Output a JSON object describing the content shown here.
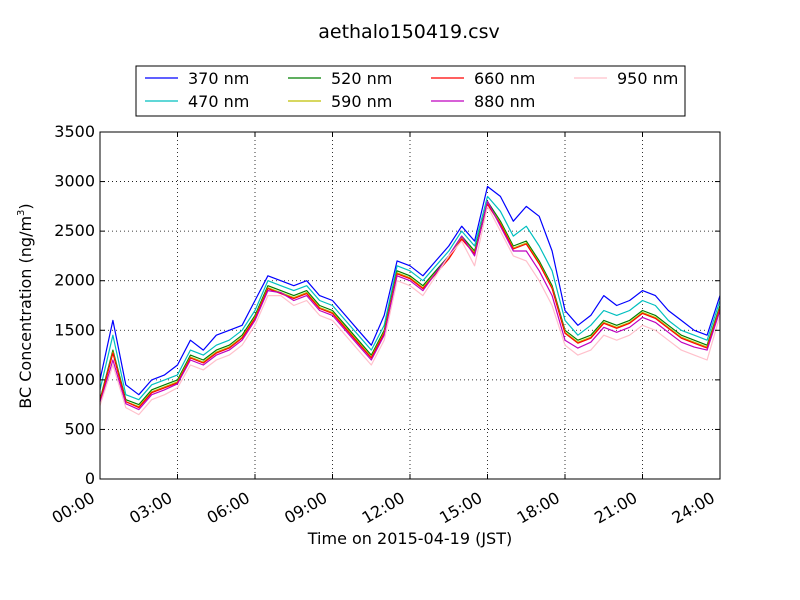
{
  "chart_data": {
    "type": "line",
    "title": "aethalo150419.csv",
    "xlabel": "Time on 2015-04-19 (JST)",
    "ylabel_main": "BC Concentration (ng/m",
    "ylabel_sup": "3",
    "ylabel_close": ")",
    "ylim": [
      0,
      3500
    ],
    "xlim": [
      0,
      24
    ],
    "grid": true,
    "legend_position": "top",
    "x_tick_labels": [
      {
        "x": 0,
        "label": "00:00"
      },
      {
        "x": 3,
        "label": "03:00"
      },
      {
        "x": 6,
        "label": "06:00"
      },
      {
        "x": 9,
        "label": "09:00"
      },
      {
        "x": 12,
        "label": "12:00"
      },
      {
        "x": 15,
        "label": "15:00"
      },
      {
        "x": 18,
        "label": "18:00"
      },
      {
        "x": 21,
        "label": "21:00"
      },
      {
        "x": 24,
        "label": "24:00"
      }
    ],
    "y_tick_labels": [
      {
        "y": 0,
        "label": "0"
      },
      {
        "y": 500,
        "label": "500"
      },
      {
        "y": 1000,
        "label": "1000"
      },
      {
        "y": 1500,
        "label": "1500"
      },
      {
        "y": 2000,
        "label": "2000"
      },
      {
        "y": 2500,
        "label": "2500"
      },
      {
        "y": 3000,
        "label": "3000"
      },
      {
        "y": 3500,
        "label": "3500"
      }
    ],
    "x": [
      0,
      0.5,
      1,
      1.5,
      2,
      2.5,
      3,
      3.5,
      4,
      4.5,
      5,
      5.5,
      6,
      6.5,
      7,
      7.5,
      8,
      8.5,
      9,
      9.5,
      10,
      10.5,
      11,
      11.5,
      12,
      12.5,
      13,
      13.5,
      14,
      14.5,
      15,
      15.5,
      16,
      16.5,
      17,
      17.5,
      18,
      18.5,
      19,
      19.5,
      20,
      20.5,
      21,
      21.5,
      22,
      22.5,
      23,
      23.5,
      24
    ],
    "series": [
      {
        "name": "370 nm",
        "color": "#0000ff",
        "values": [
          1000,
          1600,
          950,
          850,
          1000,
          1050,
          1150,
          1400,
          1300,
          1450,
          1500,
          1550,
          1800,
          2050,
          2000,
          1950,
          2000,
          1850,
          1800,
          1650,
          1500,
          1350,
          1650,
          2200,
          2150,
          2050,
          2200,
          2350,
          2550,
          2400,
          2950,
          2850,
          2600,
          2750,
          2650,
          2300,
          1700,
          1550,
          1650,
          1850,
          1750,
          1800,
          1900,
          1850,
          1700,
          1600,
          1500,
          1450,
          1850
        ]
      },
      {
        "name": "470 nm",
        "color": "#00bfbf",
        "values": [
          900,
          1450,
          850,
          800,
          950,
          1000,
          1050,
          1300,
          1250,
          1350,
          1400,
          1500,
          1700,
          2000,
          1950,
          1900,
          1950,
          1800,
          1750,
          1600,
          1450,
          1300,
          1550,
          2150,
          2100,
          2000,
          2150,
          2300,
          2500,
          2350,
          2850,
          2700,
          2450,
          2550,
          2350,
          2100,
          1600,
          1450,
          1550,
          1700,
          1650,
          1700,
          1800,
          1750,
          1600,
          1500,
          1450,
          1400,
          1800
        ]
      },
      {
        "name": "520 nm",
        "color": "#007f00",
        "values": [
          800,
          1300,
          800,
          750,
          900,
          950,
          1000,
          1250,
          1200,
          1300,
          1350,
          1450,
          1650,
          1950,
          1900,
          1850,
          1900,
          1750,
          1700,
          1550,
          1400,
          1250,
          1500,
          2100,
          2050,
          1950,
          2100,
          2250,
          2450,
          2300,
          2800,
          2600,
          2350,
          2400,
          2200,
          1950,
          1500,
          1400,
          1450,
          1600,
          1550,
          1600,
          1700,
          1650,
          1550,
          1450,
          1400,
          1350,
          1750
        ]
      },
      {
        "name": "590 nm",
        "color": "#bfbf00",
        "values": [
          780,
          1280,
          780,
          730,
          880,
          930,
          980,
          1230,
          1180,
          1280,
          1330,
          1430,
          1630,
          1930,
          1880,
          1830,
          1880,
          1730,
          1680,
          1530,
          1380,
          1230,
          1480,
          2080,
          2030,
          1930,
          2080,
          2230,
          2430,
          2280,
          2780,
          2580,
          2330,
          2380,
          2180,
          1930,
          1480,
          1380,
          1430,
          1580,
          1530,
          1580,
          1680,
          1630,
          1530,
          1430,
          1380,
          1330,
          1730
        ]
      },
      {
        "name": "660 nm",
        "color": "#ff0000",
        "values": [
          780,
          1270,
          780,
          720,
          870,
          920,
          970,
          1220,
          1170,
          1270,
          1320,
          1420,
          1620,
          1920,
          1870,
          1820,
          1870,
          1720,
          1670,
          1520,
          1370,
          1220,
          1470,
          2070,
          2020,
          1920,
          2070,
          2220,
          2420,
          2270,
          2770,
          2570,
          2320,
          2370,
          2170,
          1920,
          1470,
          1370,
          1420,
          1570,
          1520,
          1570,
          1670,
          1620,
          1520,
          1420,
          1370,
          1320,
          1720
        ]
      },
      {
        "name": "880 nm",
        "color": "#bf00bf",
        "values": [
          760,
          1200,
          760,
          700,
          850,
          900,
          960,
          1200,
          1150,
          1250,
          1300,
          1400,
          1600,
          1900,
          1880,
          1800,
          1850,
          1700,
          1650,
          1500,
          1350,
          1200,
          1450,
          2050,
          2000,
          1900,
          2080,
          2250,
          2450,
          2250,
          2800,
          2550,
          2300,
          2300,
          2100,
          1850,
          1400,
          1320,
          1380,
          1530,
          1480,
          1530,
          1630,
          1580,
          1480,
          1380,
          1330,
          1300,
          1700
        ]
      },
      {
        "name": "950 nm",
        "color": "#ffc0cb",
        "values": [
          740,
          1150,
          720,
          650,
          800,
          850,
          920,
          1150,
          1100,
          1200,
          1250,
          1350,
          1550,
          1850,
          1850,
          1750,
          1800,
          1650,
          1600,
          1450,
          1300,
          1150,
          1400,
          2000,
          1950,
          1850,
          2050,
          2250,
          2400,
          2150,
          2750,
          2500,
          2250,
          2200,
          2000,
          1750,
          1350,
          1250,
          1300,
          1450,
          1400,
          1450,
          1550,
          1500,
          1400,
          1300,
          1250,
          1200,
          1650
        ]
      }
    ]
  }
}
